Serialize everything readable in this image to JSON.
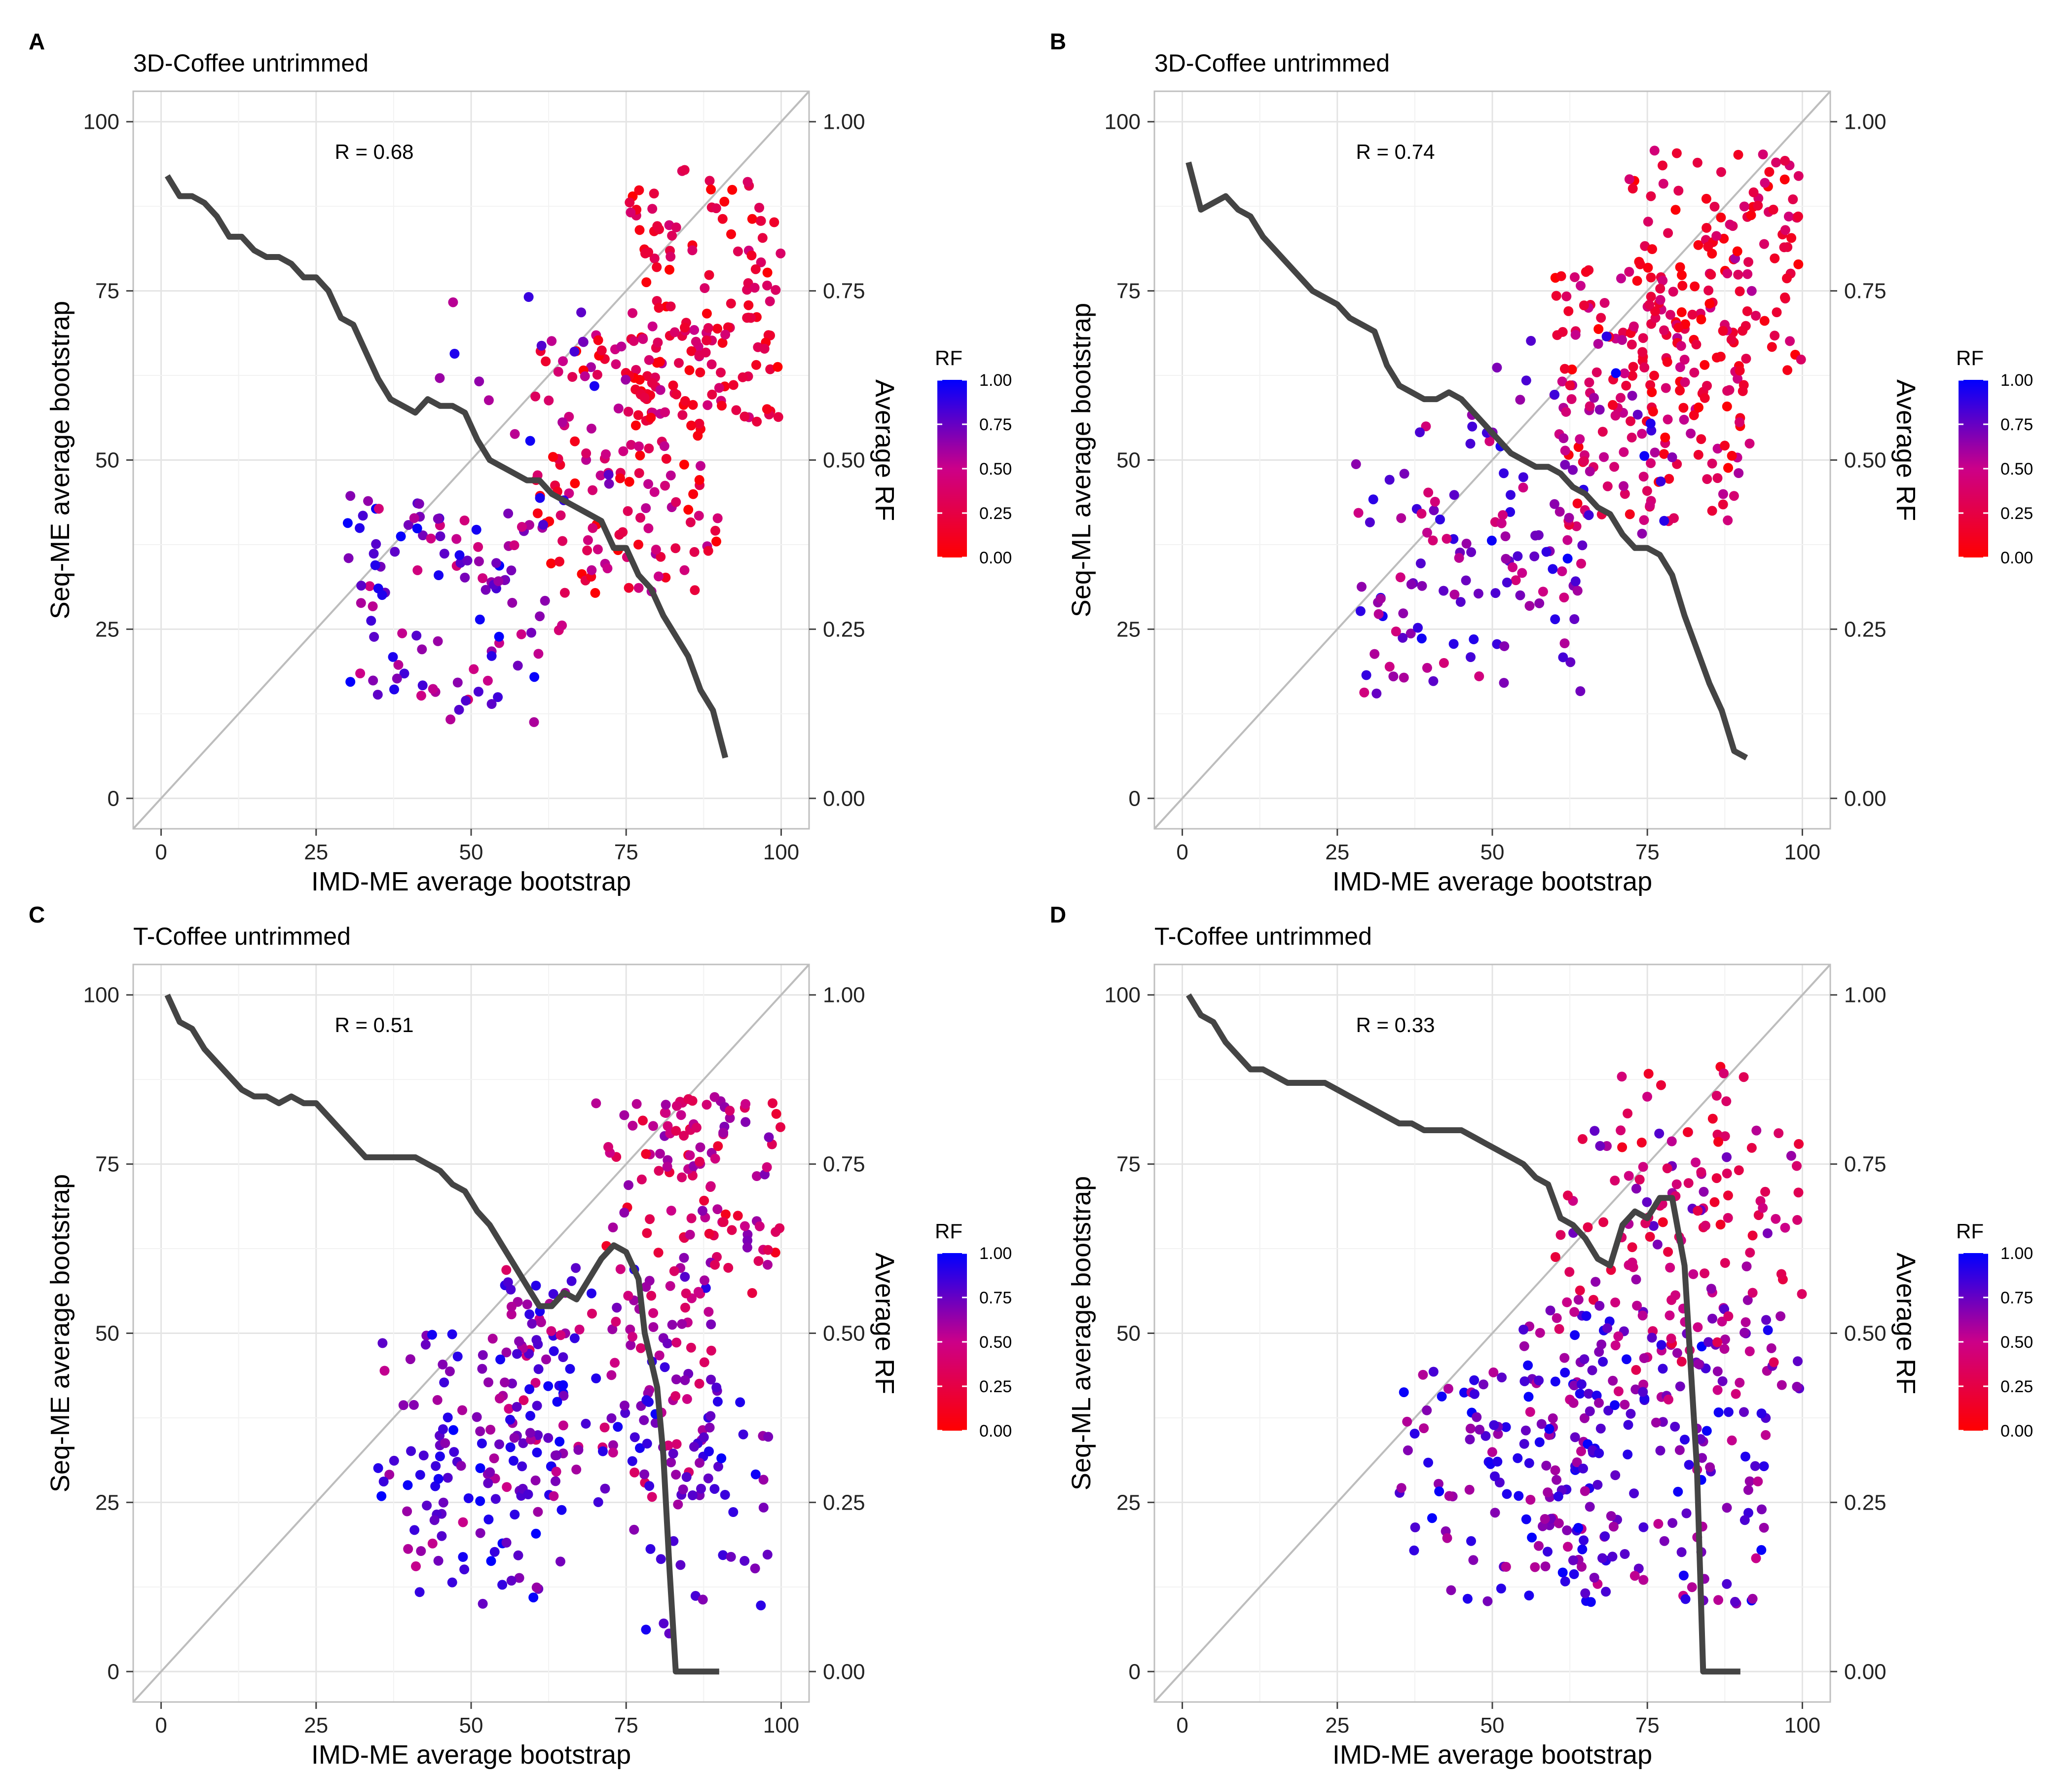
{
  "figure": {
    "rf_colorscale": {
      "low": "#ff0000",
      "mid": "#cc0088",
      "high": "#0000ff"
    }
  },
  "chart_data": [
    {
      "id": "A",
      "panel_label": "A",
      "type": "scatter",
      "title": "3D-Coffee untrimmed",
      "xlabel": "IMD-ME average bootstrap",
      "ylabel": "Seq-ME average bootstrap",
      "y2label": "Average RF",
      "xlim": [
        -4.5,
        104.5
      ],
      "ylim": [
        -4.5,
        104.5
      ],
      "x_ticks": [
        "0",
        "25",
        "50",
        "75",
        "100"
      ],
      "y_ticks": [
        "0",
        "25",
        "50",
        "75",
        "100"
      ],
      "y2_ticks": [
        "0.00",
        "0.25",
        "0.50",
        "0.75",
        "1.00"
      ],
      "annotation": "R = 0.68",
      "legend": {
        "title": "RF",
        "ticks": [
          "1.00",
          "0.75",
          "0.50",
          "0.25",
          "0.00"
        ],
        "position": "right"
      },
      "diagonal": true,
      "grid": true,
      "scatter": {
        "seed": 11,
        "n": 420,
        "rf_mean": 0.3,
        "clusters": [
          {
            "n": 150,
            "x": [
              60,
              90
            ],
            "y": [
              30,
              70
            ],
            "rf": [
              0.0,
              0.6
            ]
          },
          {
            "n": 140,
            "x": [
              75,
              100
            ],
            "y": [
              55,
              93
            ],
            "rf": [
              0.0,
              0.45
            ]
          },
          {
            "n": 110,
            "x": [
              30,
              65
            ],
            "y": [
              10,
              45
            ],
            "rf": [
              0.4,
              1.0
            ]
          },
          {
            "n": 20,
            "x": [
              40,
              75
            ],
            "y": [
              40,
              75
            ],
            "rf": [
              0.5,
              1.0
            ]
          }
        ]
      },
      "line": {
        "x": [
          1,
          3,
          5,
          7,
          9,
          11,
          13,
          15,
          17,
          19,
          21,
          23,
          25,
          27,
          29,
          31,
          33,
          35,
          37,
          39,
          41,
          43,
          45,
          47,
          49,
          51,
          53,
          55,
          57,
          59,
          61,
          63,
          65,
          67,
          69,
          71,
          73,
          75,
          77,
          79,
          81,
          83,
          85,
          87,
          89,
          91
        ],
        "y": [
          0.92,
          0.89,
          0.89,
          0.88,
          0.86,
          0.83,
          0.83,
          0.81,
          0.8,
          0.8,
          0.79,
          0.77,
          0.77,
          0.75,
          0.71,
          0.7,
          0.66,
          0.62,
          0.59,
          0.58,
          0.57,
          0.59,
          0.58,
          0.58,
          0.57,
          0.53,
          0.5,
          0.49,
          0.48,
          0.47,
          0.47,
          0.45,
          0.44,
          0.43,
          0.42,
          0.41,
          0.37,
          0.37,
          0.33,
          0.31,
          0.27,
          0.24,
          0.21,
          0.16,
          0.13,
          0.06
        ]
      }
    },
    {
      "id": "B",
      "panel_label": "B",
      "type": "scatter",
      "title": "3D-Coffee untrimmed",
      "xlabel": "IMD-ME average bootstrap",
      "ylabel": "Seq-ML average bootstrap",
      "y2label": "Average RF",
      "xlim": [
        -4.5,
        104.5
      ],
      "ylim": [
        -4.5,
        104.5
      ],
      "x_ticks": [
        "0",
        "25",
        "50",
        "75",
        "100"
      ],
      "y_ticks": [
        "0",
        "25",
        "50",
        "75",
        "100"
      ],
      "y2_ticks": [
        "0.00",
        "0.25",
        "0.50",
        "0.75",
        "1.00"
      ],
      "annotation": "R = 0.74",
      "legend": {
        "title": "RF",
        "ticks": [
          "1.00",
          "0.75",
          "0.50",
          "0.25",
          "0.00"
        ],
        "position": "right"
      },
      "diagonal": true,
      "grid": true,
      "scatter": {
        "seed": 23,
        "n": 440,
        "clusters": [
          {
            "n": 170,
            "x": [
              60,
              92
            ],
            "y": [
              40,
              80
            ],
            "rf": [
              0.0,
              0.6
            ]
          },
          {
            "n": 130,
            "x": [
              72,
              100
            ],
            "y": [
              60,
              96
            ],
            "rf": [
              0.0,
              0.45
            ]
          },
          {
            "n": 110,
            "x": [
              28,
              65
            ],
            "y": [
              15,
              55
            ],
            "rf": [
              0.4,
              1.0
            ]
          },
          {
            "n": 30,
            "x": [
              45,
              80
            ],
            "y": [
              35,
              70
            ],
            "rf": [
              0.6,
              1.0
            ]
          }
        ]
      },
      "line": {
        "x": [
          1,
          3,
          5,
          7,
          9,
          11,
          13,
          15,
          17,
          19,
          21,
          23,
          25,
          27,
          29,
          31,
          33,
          35,
          37,
          39,
          41,
          43,
          45,
          47,
          49,
          51,
          53,
          55,
          57,
          59,
          61,
          63,
          65,
          67,
          69,
          71,
          73,
          75,
          77,
          79,
          81,
          83,
          85,
          87,
          89,
          91
        ],
        "y": [
          0.94,
          0.87,
          0.88,
          0.89,
          0.87,
          0.86,
          0.83,
          0.81,
          0.79,
          0.77,
          0.75,
          0.74,
          0.73,
          0.71,
          0.7,
          0.69,
          0.64,
          0.61,
          0.6,
          0.59,
          0.59,
          0.6,
          0.59,
          0.57,
          0.55,
          0.53,
          0.51,
          0.5,
          0.49,
          0.49,
          0.48,
          0.46,
          0.45,
          0.43,
          0.42,
          0.39,
          0.37,
          0.37,
          0.36,
          0.33,
          0.27,
          0.22,
          0.17,
          0.13,
          0.07,
          0.06
        ]
      }
    },
    {
      "id": "C",
      "panel_label": "C",
      "type": "scatter",
      "title": "T-Coffee untrimmed",
      "xlabel": "IMD-ME average bootstrap",
      "ylabel": "Seq-ME average bootstrap",
      "y2label": "Average RF",
      "xlim": [
        -4.5,
        104.5
      ],
      "ylim": [
        -4.5,
        104.5
      ],
      "x_ticks": [
        "0",
        "25",
        "50",
        "75",
        "100"
      ],
      "y_ticks": [
        "0",
        "25",
        "50",
        "75",
        "100"
      ],
      "y2_ticks": [
        "0.00",
        "0.25",
        "0.50",
        "0.75",
        "1.00"
      ],
      "annotation": "R = 0.51",
      "legend": {
        "title": "RF",
        "ticks": [
          "1.00",
          "0.75",
          "0.50",
          "0.25",
          "0.00"
        ],
        "position": "right"
      },
      "diagonal": true,
      "grid": true,
      "scatter": {
        "seed": 37,
        "n": 440,
        "clusters": [
          {
            "n": 150,
            "x": [
              55,
              90
            ],
            "y": [
              25,
              60
            ],
            "rf": [
              0.35,
              0.95
            ]
          },
          {
            "n": 120,
            "x": [
              70,
              100
            ],
            "y": [
              55,
              85
            ],
            "rf": [
              0.1,
              0.7
            ]
          },
          {
            "n": 130,
            "x": [
              35,
              65
            ],
            "y": [
              10,
              50
            ],
            "rf": [
              0.5,
              1.0
            ]
          },
          {
            "n": 40,
            "x": [
              75,
              98
            ],
            "y": [
              5,
              40
            ],
            "rf": [
              0.6,
              1.0
            ]
          }
        ]
      },
      "line": {
        "x": [
          1,
          3,
          5,
          7,
          9,
          11,
          13,
          15,
          17,
          19,
          21,
          23,
          25,
          27,
          29,
          31,
          33,
          35,
          37,
          39,
          41,
          43,
          45,
          47,
          49,
          51,
          53,
          55,
          57,
          59,
          61,
          63,
          65,
          67,
          69,
          71,
          73,
          75,
          77,
          78,
          79,
          80,
          81,
          82,
          83,
          84,
          86,
          88,
          90
        ],
        "y": [
          1.0,
          0.96,
          0.95,
          0.92,
          0.9,
          0.88,
          0.86,
          0.85,
          0.85,
          0.84,
          0.85,
          0.84,
          0.84,
          0.82,
          0.8,
          0.78,
          0.76,
          0.76,
          0.76,
          0.76,
          0.76,
          0.75,
          0.74,
          0.72,
          0.71,
          0.68,
          0.66,
          0.63,
          0.6,
          0.57,
          0.54,
          0.54,
          0.56,
          0.55,
          0.58,
          0.61,
          0.63,
          0.62,
          0.58,
          0.5,
          0.46,
          0.42,
          0.32,
          0.15,
          0.0,
          0.0,
          0.0,
          0.0,
          0.0
        ]
      }
    },
    {
      "id": "D",
      "panel_label": "D",
      "type": "scatter",
      "title": "T-Coffee untrimmed",
      "xlabel": "IMD-ME average bootstrap",
      "ylabel": "Seq-ML average bootstrap",
      "y2label": "Average RF",
      "xlim": [
        -4.5,
        104.5
      ],
      "ylim": [
        -4.5,
        104.5
      ],
      "x_ticks": [
        "0",
        "25",
        "50",
        "75",
        "100"
      ],
      "y_ticks": [
        "0",
        "25",
        "50",
        "75",
        "100"
      ],
      "y2_ticks": [
        "0.00",
        "0.25",
        "0.50",
        "0.75",
        "1.00"
      ],
      "annotation": "R = 0.33",
      "legend": {
        "title": "RF",
        "ticks": [
          "1.00",
          "0.75",
          "0.50",
          "0.25",
          "0.00"
        ],
        "position": "right"
      },
      "diagonal": true,
      "grid": true,
      "scatter": {
        "seed": 53,
        "n": 440,
        "clusters": [
          {
            "n": 180,
            "x": [
              55,
              95
            ],
            "y": [
              10,
              55
            ],
            "rf": [
              0.5,
              1.0
            ]
          },
          {
            "n": 120,
            "x": [
              60,
              100
            ],
            "y": [
              40,
              80
            ],
            "rf": [
              0.2,
              0.8
            ]
          },
          {
            "n": 100,
            "x": [
              35,
              70
            ],
            "y": [
              10,
              45
            ],
            "rf": [
              0.55,
              1.0
            ]
          },
          {
            "n": 40,
            "x": [
              70,
              92
            ],
            "y": [
              60,
              90
            ],
            "rf": [
              0.1,
              0.5
            ]
          }
        ]
      },
      "line": {
        "x": [
          1,
          3,
          5,
          7,
          9,
          11,
          13,
          15,
          17,
          19,
          21,
          23,
          25,
          27,
          29,
          31,
          33,
          35,
          37,
          39,
          41,
          43,
          45,
          47,
          49,
          51,
          53,
          55,
          57,
          59,
          61,
          63,
          65,
          67,
          69,
          71,
          73,
          75,
          77,
          79,
          81,
          82,
          83,
          84,
          86,
          88,
          90
        ],
        "y": [
          1.0,
          0.97,
          0.96,
          0.93,
          0.91,
          0.89,
          0.89,
          0.88,
          0.87,
          0.87,
          0.87,
          0.87,
          0.86,
          0.85,
          0.84,
          0.83,
          0.82,
          0.81,
          0.81,
          0.8,
          0.8,
          0.8,
          0.8,
          0.79,
          0.78,
          0.77,
          0.76,
          0.75,
          0.73,
          0.72,
          0.67,
          0.66,
          0.64,
          0.61,
          0.6,
          0.66,
          0.68,
          0.67,
          0.7,
          0.7,
          0.6,
          0.45,
          0.3,
          0.0,
          0.0,
          0.0,
          0.0
        ]
      }
    }
  ]
}
